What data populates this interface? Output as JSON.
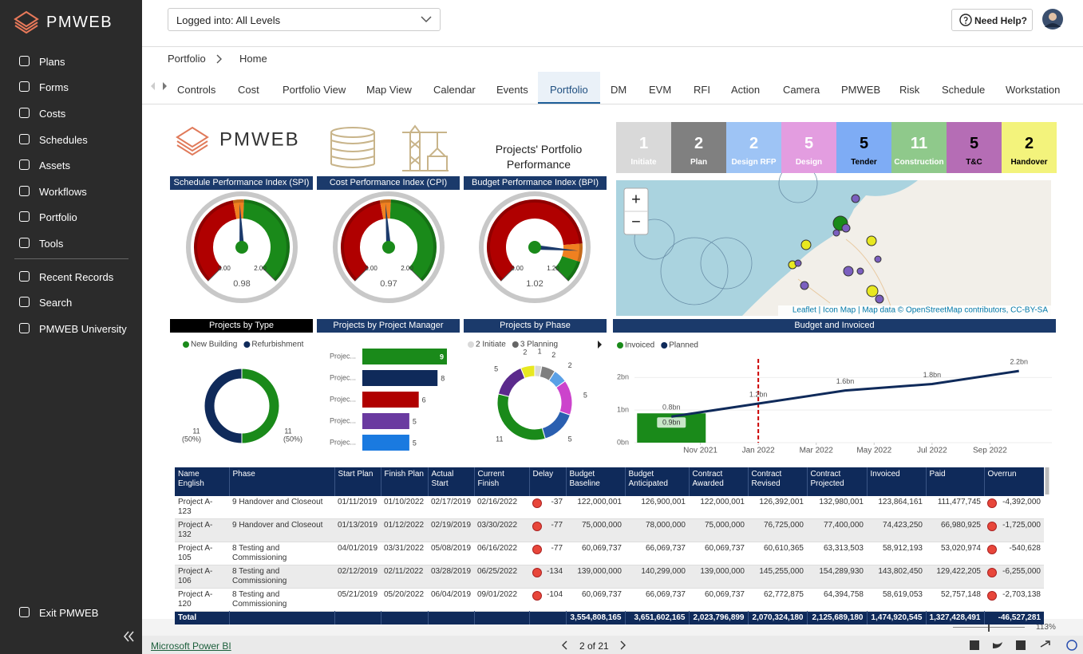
{
  "sidebar": {
    "brand": "PMWEB",
    "items": [
      "Plans",
      "Forms",
      "Costs",
      "Schedules",
      "Assets",
      "Workflows",
      "Portfolio",
      "Tools"
    ],
    "items2": [
      "Recent Records",
      "Search",
      "PMWEB University"
    ],
    "exit": "Exit PMWEB"
  },
  "topbar": {
    "level": "Logged into: All Levels",
    "help": "Need Help?"
  },
  "breadcrumb": [
    "Portfolio",
    "Home"
  ],
  "tabs": [
    "Controls",
    "Cost",
    "Portfolio View",
    "Map View",
    "Calendar",
    "Events",
    "Portfolio",
    "DM",
    "EVM",
    "RFI",
    "Action",
    "Camera",
    "PMWEB",
    "Risk",
    "Schedule",
    "Workstation"
  ],
  "active_tab": 6,
  "dashboard": {
    "logo": "PMWEB",
    "title": "Projects' Portfolio Performance",
    "phases": [
      {
        "count": 1,
        "label": "Initiate",
        "color": "#d9d9d9",
        "text": "#fff"
      },
      {
        "count": 2,
        "label": "Plan",
        "color": "#808080",
        "text": "#fff"
      },
      {
        "count": 2,
        "label": "Design RFP",
        "color": "#9ec4f5",
        "text": "#fff"
      },
      {
        "count": 5,
        "label": "Design",
        "color": "#e39de0",
        "text": "#fff"
      },
      {
        "count": 5,
        "label": "Tender",
        "color": "#7eacf5",
        "text": "#000"
      },
      {
        "count": 11,
        "label": "Construction",
        "color": "#8fc98b",
        "text": "#fff"
      },
      {
        "count": 5,
        "label": "T&C",
        "color": "#b56db5",
        "text": "#000"
      },
      {
        "count": 2,
        "label": "Handover",
        "color": "#f3f37c",
        "text": "#000"
      }
    ],
    "gauges": [
      {
        "title": "Schedule Performance Index (SPI)",
        "value": 0.98,
        "ticks": [
          {
            "value": 0,
            "label": "0.00"
          },
          {
            "value": 2,
            "label": "2.00"
          }
        ],
        "bands": [
          {
            "from": 0,
            "to": 0.92,
            "color": "#b00000"
          },
          {
            "from": 0.92,
            "to": 1.02,
            "color": "#f08020"
          },
          {
            "from": 1.02,
            "to": 2,
            "color": "#1a8a1a"
          }
        ]
      },
      {
        "title": "Cost Performance Index (CPI)",
        "value": 0.97,
        "ticks": [
          {
            "value": 0,
            "label": "0.00"
          },
          {
            "value": 2,
            "label": "2.00"
          }
        ],
        "bands": [
          {
            "from": 0,
            "to": 0.92,
            "color": "#b00000"
          },
          {
            "from": 0.92,
            "to": 1.02,
            "color": "#f08020"
          },
          {
            "from": 1.02,
            "to": 2,
            "color": "#1a8a1a"
          }
        ]
      },
      {
        "title": "Budget Performance Index (BPI)",
        "value": 1.02,
        "ticks": [
          {
            "value": 0,
            "label": "0.00"
          },
          {
            "value": 1.2,
            "label": "1.20"
          }
        ],
        "bands": [
          {
            "from": 0,
            "to": 0.98,
            "color": "#b00000"
          },
          {
            "from": 0.98,
            "to": 1.08,
            "color": "#f08020"
          },
          {
            "from": 1.08,
            "to": 1.2,
            "color": "#1a8a1a"
          }
        ]
      }
    ],
    "map": {
      "zoom": [
        "+",
        "−"
      ],
      "attribution": "Leaflet | Icon Map | Map data © OpenStreetMap contributors, CC-BY-SA"
    },
    "type": {
      "title": "Projects by Type",
      "series": [
        {
          "name": "New Building",
          "color": "#1a8a1a",
          "value": 11,
          "pct": "(50%)"
        },
        {
          "name": "Refurbishment",
          "color": "#0f2a5a",
          "value": 11,
          "pct": "(50%)"
        }
      ]
    },
    "pm": {
      "title": "Projects by Project Manager",
      "names": [
        "Projec...",
        "Projec...",
        "Projec...",
        "Projec...",
        "Projec..."
      ],
      "values": [
        9,
        8,
        6,
        5,
        5
      ],
      "colors": [
        "#1a8a1a",
        "#0f2a5a",
        "#b00000",
        "#6a3aa0",
        "#1a7ae0"
      ],
      "xlim": [
        0,
        9
      ]
    },
    "phase": {
      "title": "Projects by Phase",
      "legend": [
        {
          "name": "2 Initiate",
          "color": "#d9d9d9"
        },
        {
          "name": "3 Planning",
          "color": "#666666"
        }
      ],
      "values": [
        1,
        2,
        2,
        5,
        5,
        11,
        5,
        2
      ],
      "colors": [
        "#d9d9d9",
        "#7f7f7f",
        "#5aa0e6",
        "#cc44cc",
        "#2a5fb0",
        "#1a8a1a",
        "#5b2a8c",
        "#e8e820"
      ]
    },
    "budget": {
      "title": "Budget and Invoiced",
      "series": [
        {
          "name": "Invoiced",
          "color": "#1a8a1a",
          "x": [
            "2021-10"
          ],
          "values": [
            0.9
          ],
          "value_labels": [
            "0.9bn"
          ]
        },
        {
          "name": "Planned",
          "color": "#0f2a5a",
          "x": [
            "2021-10",
            "2022-01",
            "2022-04",
            "2022-07",
            "2022-10"
          ],
          "values": [
            0.8,
            1.2,
            1.6,
            1.8,
            2.2
          ],
          "value_labels": [
            "0.8bn",
            "1.2bn",
            "1.6bn",
            "1.8bn",
            "2.2bn"
          ]
        }
      ],
      "ylim": [
        0,
        2.4
      ],
      "yticks": [
        {
          "value": 0,
          "label": "0bn"
        },
        {
          "value": 1,
          "label": "1bn"
        },
        {
          "value": 2,
          "label": "2bn"
        }
      ],
      "xlim": [
        "2021-09",
        "2022-11"
      ],
      "xticks": [
        {
          "value": "2021-11",
          "label": "Nov 2021"
        },
        {
          "value": "2022-01",
          "label": "Jan 2022"
        },
        {
          "value": "2022-03",
          "label": "Mar 2022"
        },
        {
          "value": "2022-05",
          "label": "May 2022"
        },
        {
          "value": "2022-07",
          "label": "Jul 2022"
        },
        {
          "value": "2022-09",
          "label": "Sep 2022"
        }
      ],
      "today": "2022-01"
    },
    "table": {
      "columns": [
        "Name English",
        "Phase",
        "Start Plan",
        "Finish Plan",
        "Actual Start",
        "Current Finish",
        "Delay",
        "Budget Baseline",
        "Budget Anticipated",
        "Contract Awarded",
        "Contract Revised",
        "Contract Projected",
        "Invoiced",
        "Paid",
        "Overrun"
      ],
      "rows": [
        [
          "Project A-123",
          "9 Handover and Closeout",
          "01/11/2019",
          "01/10/2022",
          "02/17/2019",
          "02/16/2022",
          "-37",
          "122,000,001",
          "126,900,001",
          "122,000,001",
          "126,392,001",
          "132,980,001",
          "123,864,161",
          "111,477,745",
          "-4,392,000"
        ],
        [
          "Project A-132",
          "9 Handover and Closeout",
          "01/13/2019",
          "01/12/2022",
          "02/19/2019",
          "03/30/2022",
          "-77",
          "75,000,000",
          "78,000,000",
          "75,000,000",
          "76,725,000",
          "77,400,000",
          "74,423,250",
          "66,980,925",
          "-1,725,000"
        ],
        [
          "Project A-105",
          "8 Testing and Commissioning",
          "04/01/2019",
          "03/31/2022",
          "05/08/2019",
          "06/16/2022",
          "-77",
          "60,069,737",
          "66,069,737",
          "60,069,737",
          "60,610,365",
          "63,313,503",
          "58,912,193",
          "53,020,974",
          "-540,628"
        ],
        [
          "Project A-106",
          "8 Testing and Commissioning",
          "02/12/2019",
          "02/11/2022",
          "03/28/2019",
          "06/25/2022",
          "-134",
          "139,000,000",
          "140,299,000",
          "139,000,000",
          "145,255,000",
          "154,289,930",
          "143,802,450",
          "129,422,205",
          "-6,255,000"
        ],
        [
          "Project A-120",
          "8 Testing and Commissioning",
          "05/21/2019",
          "05/20/2022",
          "06/04/2019",
          "09/01/2022",
          "-104",
          "60,069,737",
          "66,069,737",
          "60,069,737",
          "62,772,875",
          "64,394,758",
          "58,619,053",
          "52,757,148",
          "-2,703,138"
        ]
      ],
      "total": {
        "label": "Total",
        "values": [
          "3,554,808,165",
          "3,651,602,165",
          "2,023,796,899",
          "2,070,324,180",
          "2,125,689,180",
          "1,474,920,545",
          "1,327,428,491",
          "-46,527,281"
        ]
      }
    }
  },
  "footer": {
    "link": "Microsoft Power BI",
    "page": "2 of 21",
    "zoom": "113%"
  }
}
